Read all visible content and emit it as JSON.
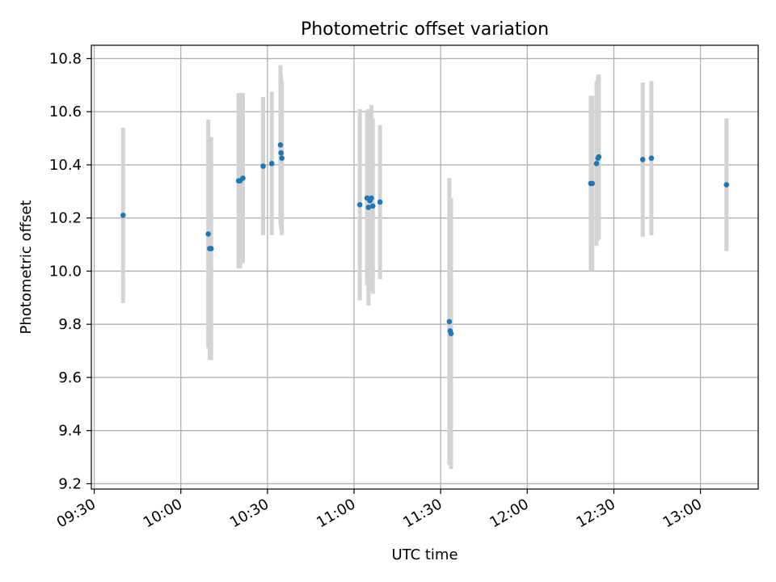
{
  "chart_data": {
    "type": "scatter",
    "title": "Photometric offset variation",
    "xlabel": "UTC time",
    "ylabel": "Photometric offset",
    "x_axis_type": "time",
    "xlim": [
      "09:29",
      "13:20"
    ],
    "ylim": [
      9.18,
      10.85
    ],
    "xticks": [
      "09:30",
      "10:00",
      "10:30",
      "11:00",
      "11:30",
      "12:00",
      "12:30",
      "13:00"
    ],
    "yticks": [
      9.2,
      9.4,
      9.6,
      9.8,
      10.0,
      10.2,
      10.4,
      10.6,
      10.8
    ],
    "grid": true,
    "marker_color": "#1f77b4",
    "errorbar_color": "#d3d3d3",
    "points": [
      {
        "x": "09:40",
        "y": 10.21,
        "err": 0.33
      },
      {
        "x": "10:09.5",
        "y": 10.14,
        "err": 0.43
      },
      {
        "x": "10:10",
        "y": 10.085,
        "err": 0.42
      },
      {
        "x": "10:10.5",
        "y": 10.085,
        "err": 0.42
      },
      {
        "x": "10:20",
        "y": 10.34,
        "err": 0.33
      },
      {
        "x": "10:20.5",
        "y": 10.34,
        "err": 0.33
      },
      {
        "x": "10:21.5",
        "y": 10.35,
        "err": 0.32
      },
      {
        "x": "10:28.5",
        "y": 10.395,
        "err": 0.26
      },
      {
        "x": "10:31.5",
        "y": 10.405,
        "err": 0.27
      },
      {
        "x": "10:34.5",
        "y": 10.475,
        "err": 0.3
      },
      {
        "x": "10:34.7",
        "y": 10.445,
        "err": 0.29
      },
      {
        "x": "10:35",
        "y": 10.425,
        "err": 0.29
      },
      {
        "x": "11:02",
        "y": 10.25,
        "err": 0.36
      },
      {
        "x": "11:04.5",
        "y": 10.275,
        "err": 0.33
      },
      {
        "x": "11:05",
        "y": 10.24,
        "err": 0.37
      },
      {
        "x": "11:05.5",
        "y": 10.265,
        "err": 0.34
      },
      {
        "x": "11:06",
        "y": 10.275,
        "err": 0.35
      },
      {
        "x": "11:06.5",
        "y": 10.245,
        "err": 0.33
      },
      {
        "x": "11:09",
        "y": 10.26,
        "err": 0.29
      },
      {
        "x": "11:33",
        "y": 9.81,
        "err": 0.54
      },
      {
        "x": "11:33.3",
        "y": 9.775,
        "err": 0.5
      },
      {
        "x": "11:33.6",
        "y": 9.765,
        "err": 0.51
      },
      {
        "x": "12:22",
        "y": 10.33,
        "err": 0.33
      },
      {
        "x": "12:22.5",
        "y": 10.33,
        "err": 0.33
      },
      {
        "x": "12:24",
        "y": 10.405,
        "err": 0.31
      },
      {
        "x": "12:24.5",
        "y": 10.425,
        "err": 0.31
      },
      {
        "x": "12:24.8",
        "y": 10.43,
        "err": 0.31
      },
      {
        "x": "12:40",
        "y": 10.42,
        "err": 0.29
      },
      {
        "x": "12:43",
        "y": 10.425,
        "err": 0.29
      },
      {
        "x": "13:09",
        "y": 10.325,
        "err": 0.25
      }
    ]
  }
}
